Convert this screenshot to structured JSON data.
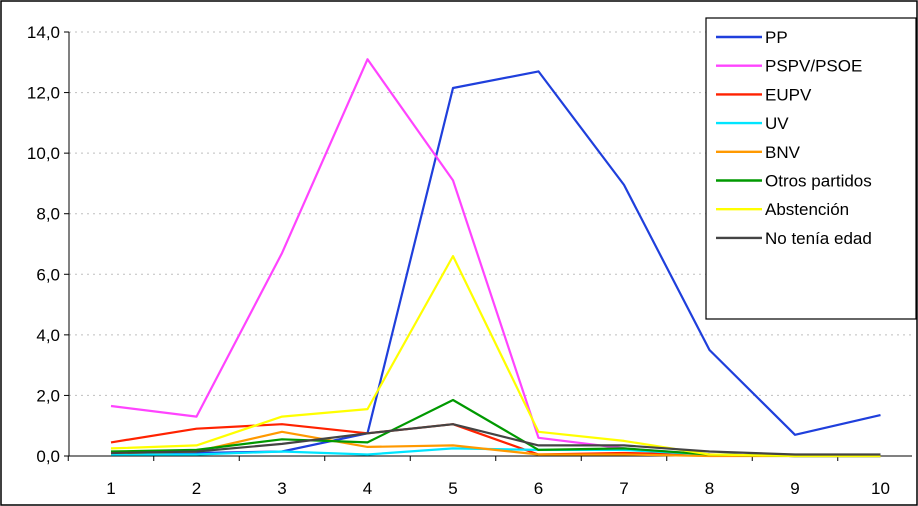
{
  "chart_data": {
    "type": "line",
    "x": [
      1,
      2,
      3,
      4,
      5,
      6,
      7,
      8,
      9,
      10
    ],
    "x_tick_labels": [
      "1",
      "2",
      "3",
      "4",
      "5",
      "6",
      "7",
      "8",
      "9",
      "10"
    ],
    "y_tick_labels": [
      "0,0",
      "2,0",
      "4,0",
      "6,0",
      "8,0",
      "10,0",
      "12,0",
      "14,0"
    ],
    "ylim": [
      0,
      14
    ],
    "grid": "horizontal dotted",
    "legend_position": "top-right",
    "series": [
      {
        "name": "PP",
        "color": "#1f3fdc",
        "values": [
          0.1,
          0.1,
          0.15,
          0.75,
          12.15,
          12.7,
          8.95,
          3.5,
          0.7,
          1.35
        ]
      },
      {
        "name": "PSPV/PSOE",
        "color": "#ff44ff",
        "values": [
          1.65,
          1.3,
          6.7,
          13.1,
          9.1,
          0.6,
          0.25,
          0.05,
          0.0,
          0.0
        ]
      },
      {
        "name": "EUPV",
        "color": "#ff2200",
        "values": [
          0.45,
          0.9,
          1.05,
          0.75,
          1.05,
          0.05,
          0.1,
          0.05,
          0.0,
          0.0
        ]
      },
      {
        "name": "UV",
        "color": "#00e5ff",
        "values": [
          0.05,
          0.05,
          0.15,
          0.05,
          0.25,
          0.2,
          0.2,
          0.05,
          0.0,
          0.0
        ]
      },
      {
        "name": "BNV",
        "color": "#ff9900",
        "values": [
          0.1,
          0.15,
          0.8,
          0.3,
          0.35,
          0.05,
          0.05,
          0.0,
          0.0,
          0.0
        ]
      },
      {
        "name": "Otros partidos",
        "color": "#009900",
        "values": [
          0.15,
          0.2,
          0.55,
          0.45,
          1.85,
          0.2,
          0.25,
          0.05,
          0.0,
          0.0
        ]
      },
      {
        "name": "Abstención",
        "color": "#ffff00",
        "values": [
          0.25,
          0.35,
          1.3,
          1.55,
          6.6,
          0.8,
          0.5,
          0.05,
          0.0,
          0.0
        ]
      },
      {
        "name": "No tenía edad",
        "color": "#444444",
        "values": [
          0.1,
          0.15,
          0.4,
          0.75,
          1.05,
          0.35,
          0.35,
          0.15,
          0.05,
          0.05
        ]
      }
    ]
  }
}
